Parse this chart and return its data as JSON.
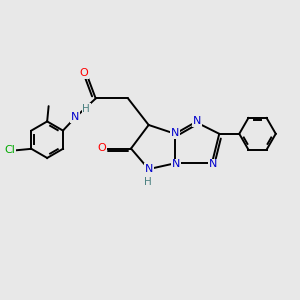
{
  "bg_color": "#e8e8e8",
  "atom_colors": {
    "C": "#000000",
    "N": "#0000cc",
    "O": "#ff0000",
    "Cl": "#00aa00",
    "H": "#4a8080"
  },
  "bond_color": "#000000",
  "bond_width": 1.4,
  "figsize": [
    3.0,
    3.0
  ],
  "dpi": 100,
  "xlim": [
    0,
    10
  ],
  "ylim": [
    0,
    10
  ]
}
